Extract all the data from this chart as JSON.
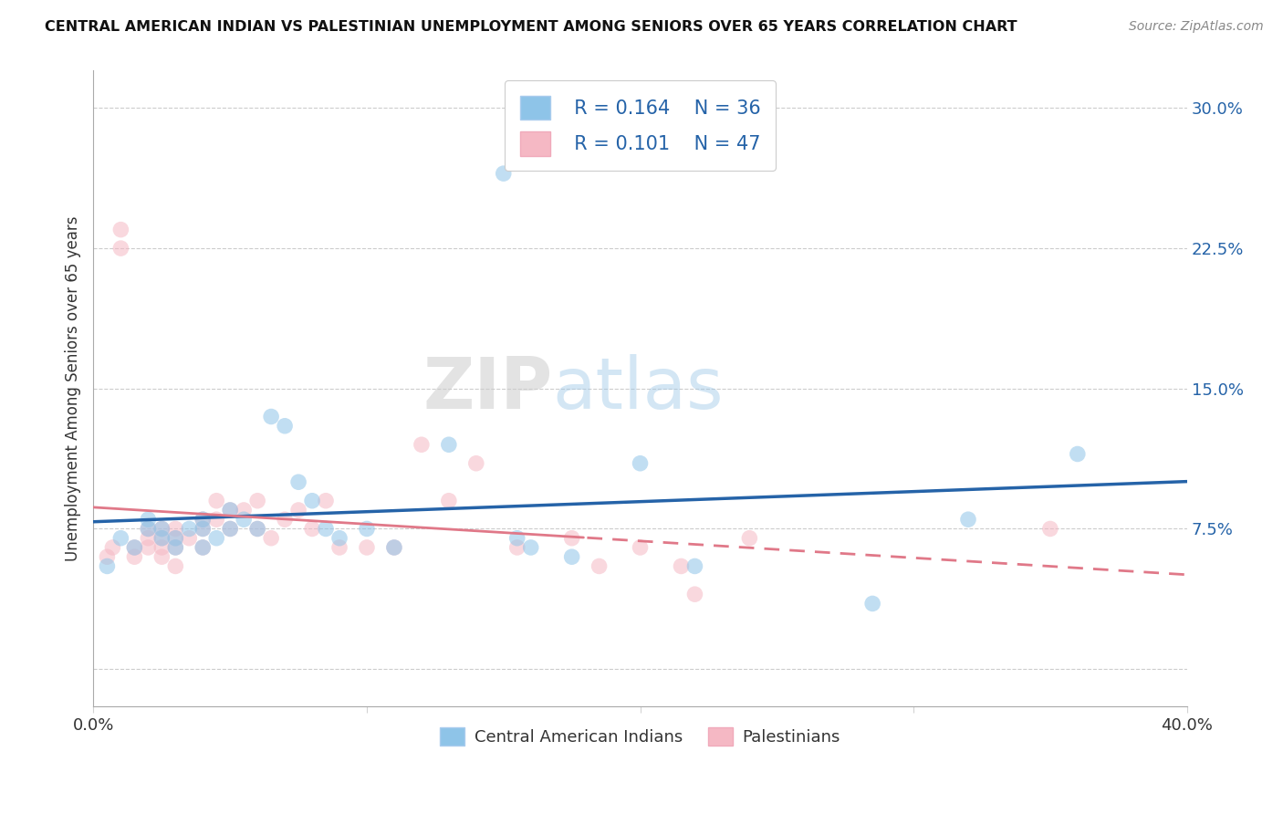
{
  "title": "CENTRAL AMERICAN INDIAN VS PALESTINIAN UNEMPLOYMENT AMONG SENIORS OVER 65 YEARS CORRELATION CHART",
  "source": "Source: ZipAtlas.com",
  "ylabel": "Unemployment Among Seniors over 65 years",
  "xlim": [
    0.0,
    0.4
  ],
  "ylim": [
    -0.02,
    0.32
  ],
  "yticks": [
    0.0,
    0.075,
    0.15,
    0.225,
    0.3
  ],
  "yticklabels_right": [
    "",
    "7.5%",
    "15.0%",
    "22.5%",
    "30.0%"
  ],
  "xticks": [
    0.0,
    0.1,
    0.2,
    0.3,
    0.4
  ],
  "xticklabels": [
    "0.0%",
    "",
    "",
    "",
    "40.0%"
  ],
  "watermark_zip": "ZIP",
  "watermark_atlas": "atlas",
  "legend_r1": "R = 0.164",
  "legend_n1": "N = 36",
  "legend_r2": "R = 0.101",
  "legend_n2": "N = 47",
  "color_blue": "#8ec4e8",
  "color_pink": "#f5b8c4",
  "line_blue": "#2563a8",
  "line_pink": "#e07888",
  "blue_x": [
    0.005,
    0.01,
    0.015,
    0.02,
    0.02,
    0.025,
    0.025,
    0.03,
    0.03,
    0.035,
    0.04,
    0.04,
    0.04,
    0.045,
    0.05,
    0.05,
    0.055,
    0.06,
    0.065,
    0.07,
    0.075,
    0.08,
    0.085,
    0.09,
    0.1,
    0.11,
    0.13,
    0.15,
    0.155,
    0.16,
    0.175,
    0.2,
    0.22,
    0.285,
    0.32,
    0.36
  ],
  "blue_y": [
    0.055,
    0.07,
    0.065,
    0.08,
    0.075,
    0.075,
    0.07,
    0.07,
    0.065,
    0.075,
    0.08,
    0.075,
    0.065,
    0.07,
    0.085,
    0.075,
    0.08,
    0.075,
    0.135,
    0.13,
    0.1,
    0.09,
    0.075,
    0.07,
    0.075,
    0.065,
    0.12,
    0.265,
    0.07,
    0.065,
    0.06,
    0.11,
    0.055,
    0.035,
    0.08,
    0.115
  ],
  "pink_x": [
    0.005,
    0.007,
    0.01,
    0.01,
    0.015,
    0.015,
    0.02,
    0.02,
    0.02,
    0.025,
    0.025,
    0.025,
    0.025,
    0.03,
    0.03,
    0.03,
    0.03,
    0.035,
    0.04,
    0.04,
    0.04,
    0.045,
    0.045,
    0.05,
    0.05,
    0.055,
    0.06,
    0.06,
    0.065,
    0.07,
    0.075,
    0.08,
    0.085,
    0.09,
    0.1,
    0.11,
    0.12,
    0.13,
    0.14,
    0.155,
    0.175,
    0.185,
    0.2,
    0.215,
    0.22,
    0.24,
    0.35
  ],
  "pink_y": [
    0.06,
    0.065,
    0.235,
    0.225,
    0.065,
    0.06,
    0.075,
    0.07,
    0.065,
    0.075,
    0.07,
    0.065,
    0.06,
    0.075,
    0.07,
    0.065,
    0.055,
    0.07,
    0.08,
    0.075,
    0.065,
    0.09,
    0.08,
    0.085,
    0.075,
    0.085,
    0.09,
    0.075,
    0.07,
    0.08,
    0.085,
    0.075,
    0.09,
    0.065,
    0.065,
    0.065,
    0.12,
    0.09,
    0.11,
    0.065,
    0.07,
    0.055,
    0.065,
    0.055,
    0.04,
    0.07,
    0.075
  ]
}
